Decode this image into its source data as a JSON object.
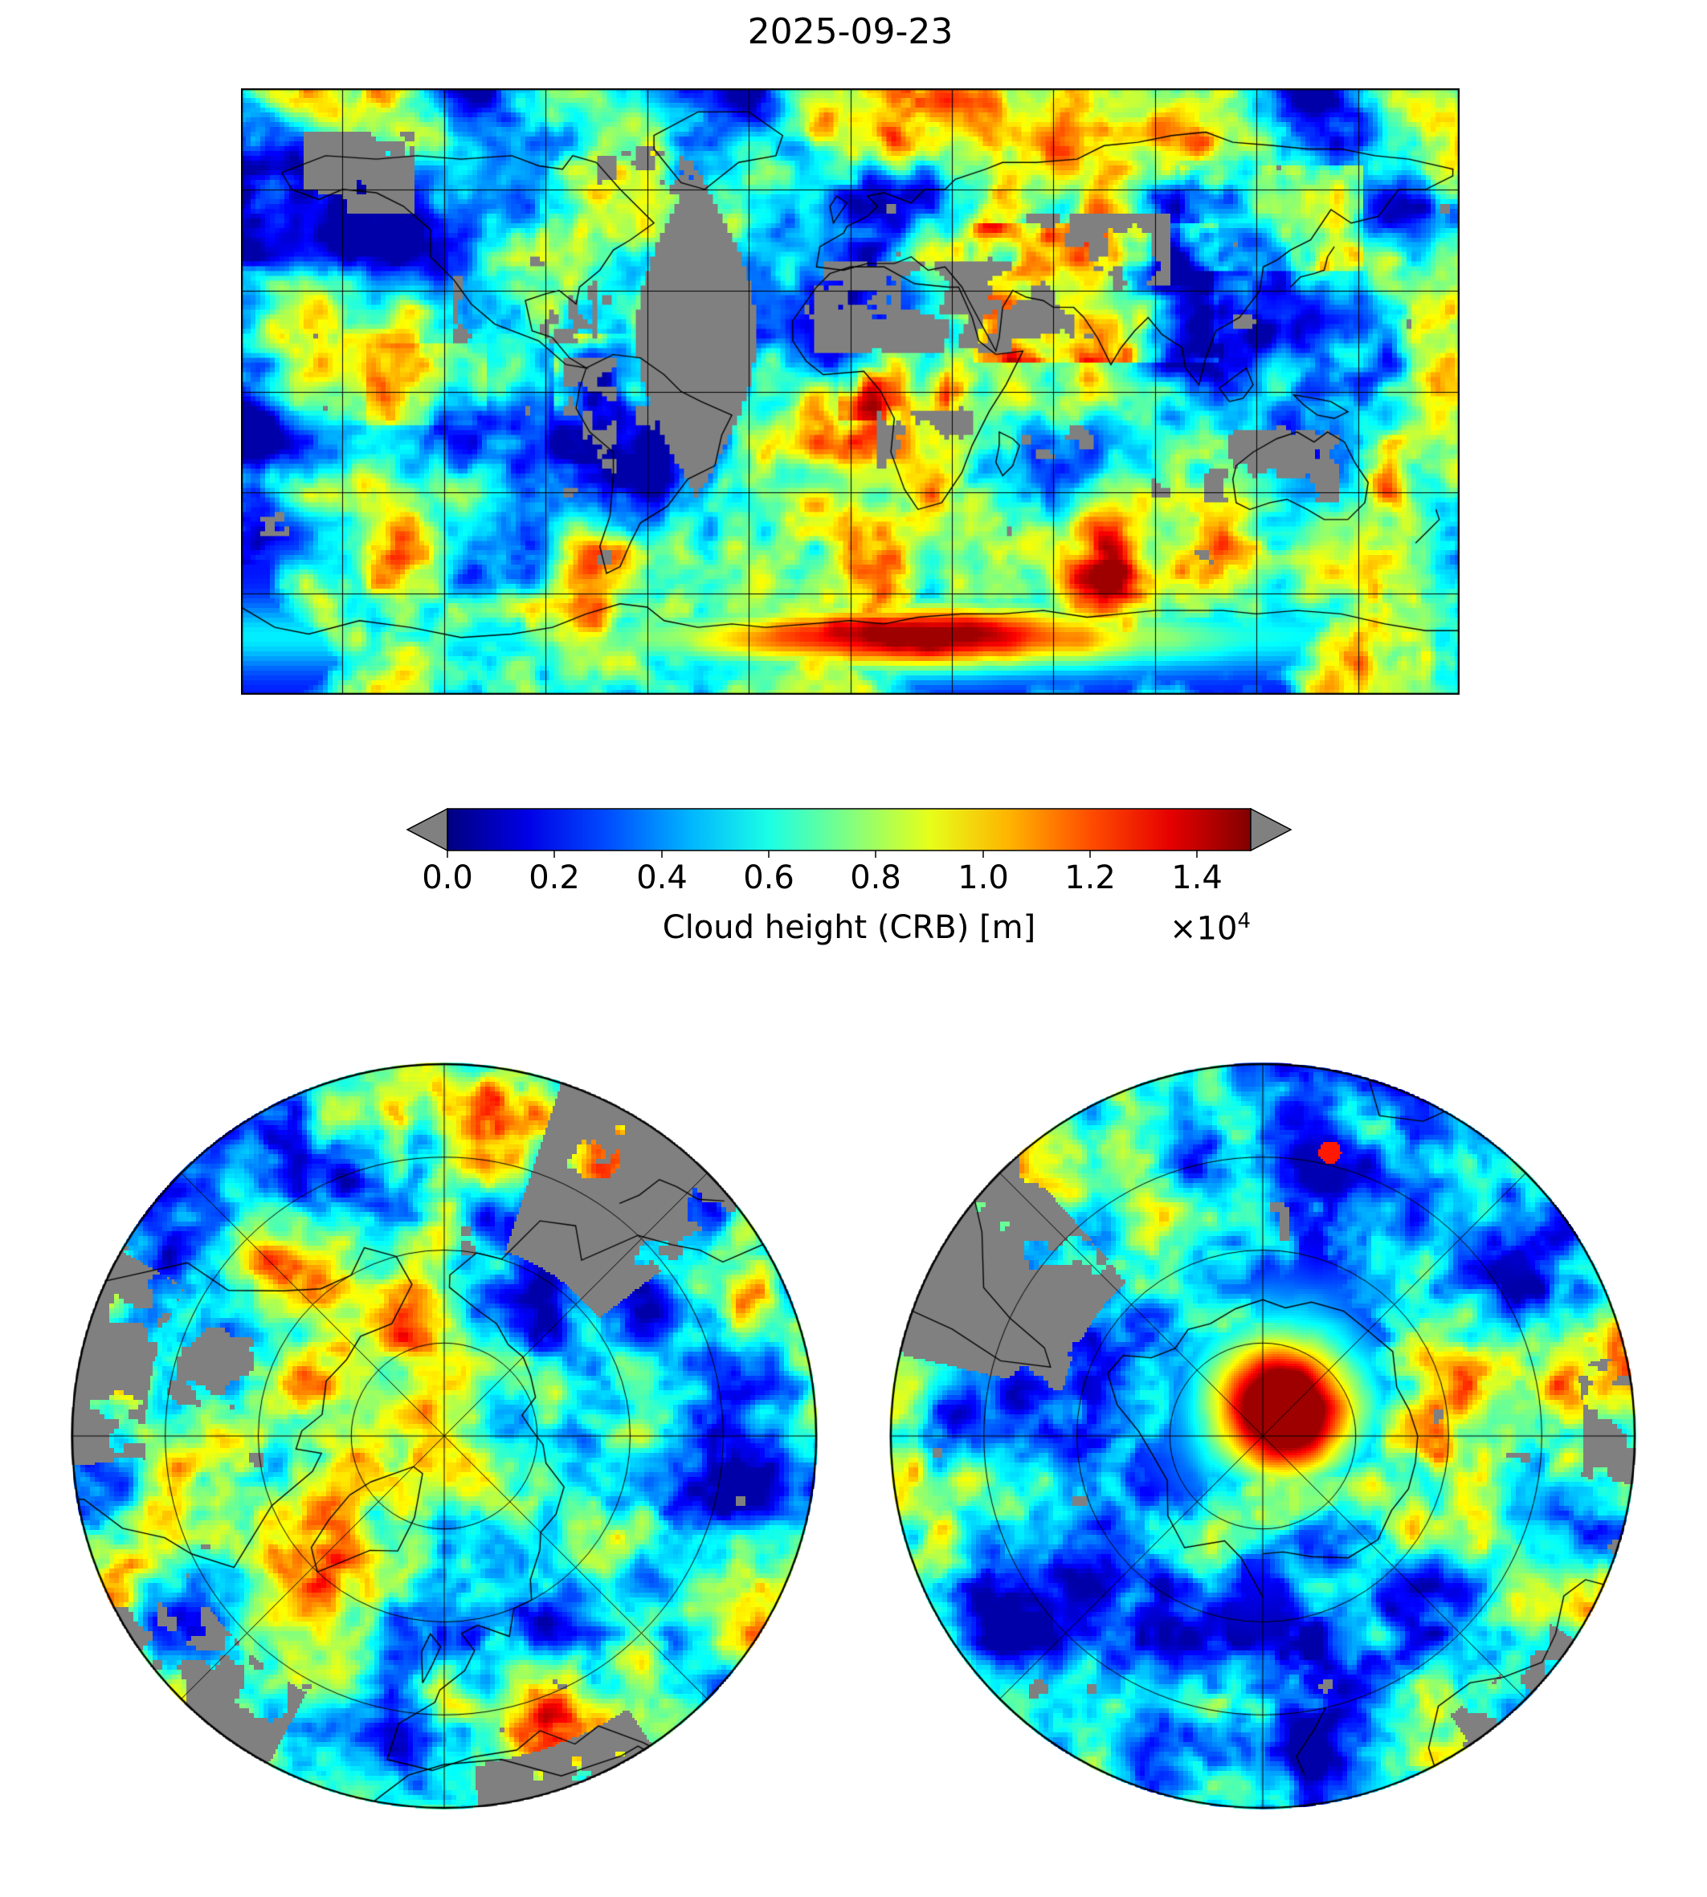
{
  "figure": {
    "title": "2025-09-23",
    "background": "#ffffff"
  },
  "colorbar": {
    "label": "Cloud height (CRB) [m]",
    "scale_base": "×10",
    "scale_exponent": "4",
    "ticks": [
      "0.0",
      "0.2",
      "0.4",
      "0.6",
      "0.8",
      "1.0",
      "1.2",
      "1.4"
    ],
    "colormap": "jet",
    "extend_color": "#808080",
    "vmin": 0,
    "vmax": 15000
  },
  "chart_data": {
    "type": "heatmap",
    "title": "2025-09-23",
    "variable": "Cloud height (CRB) [m]",
    "units": "m",
    "colormap": "jet",
    "value_range": [
      0,
      15000
    ],
    "colorbar_tick_values": [
      0,
      2000,
      4000,
      6000,
      8000,
      10000,
      12000,
      14000
    ],
    "colorbar_tick_labels": [
      "0.0",
      "0.2",
      "0.4",
      "0.6",
      "0.8",
      "1.0",
      "1.2",
      "1.4"
    ],
    "colorbar_scale": "×10⁴",
    "missing_data_color": "#808080",
    "panels": [
      {
        "name": "global-map",
        "projection": "equirectangular",
        "lon_range": [
          -180,
          180
        ],
        "lat_range": [
          -90,
          90
        ],
        "gridline_spacing_deg": 30,
        "summary": "Mostly low cloud heights (0–4000 m, blue) over the oceans with cyan/green marbling; brighter mid/high clouds (cyan–yellow) in the tropics, over South America, Africa and South/East Asia; maximum heights 10000–15000 m (orange–red band) along the Antarctic coast near 0–90°E; gray missing-data swath over eastern South America / Atlantic and scattered gray patches over deserts (Sahara, Arabia, Australia, SW North America, Andes)."
      },
      {
        "name": "north-polar-map",
        "projection": "north polar azimuthal",
        "lat_limit_deg": 30,
        "meridian_spacing_deg": 45,
        "parallel_circles": 3,
        "summary": "Predominantly low blue cloud heights with cyan marbling; green-yellow patch near the top edge; gray missing-data wedges at the upper-right, left and lower edges; coastlines of Greenland, North America and Eurasia visible."
      },
      {
        "name": "south-polar-map",
        "projection": "south polar azimuthal",
        "lat_limit_deg": -30,
        "meridian_spacing_deg": 45,
        "parallel_circles": 3,
        "summary": "High clouds (yellow–red, up to ~14000 m) centered over Antarctica near the pole, surrounded by a cyan/green ring over the Antarctic coast; blue low clouds elsewhere; gray missing-data wedge at the upper left and small gray patches at the edges."
      }
    ]
  }
}
